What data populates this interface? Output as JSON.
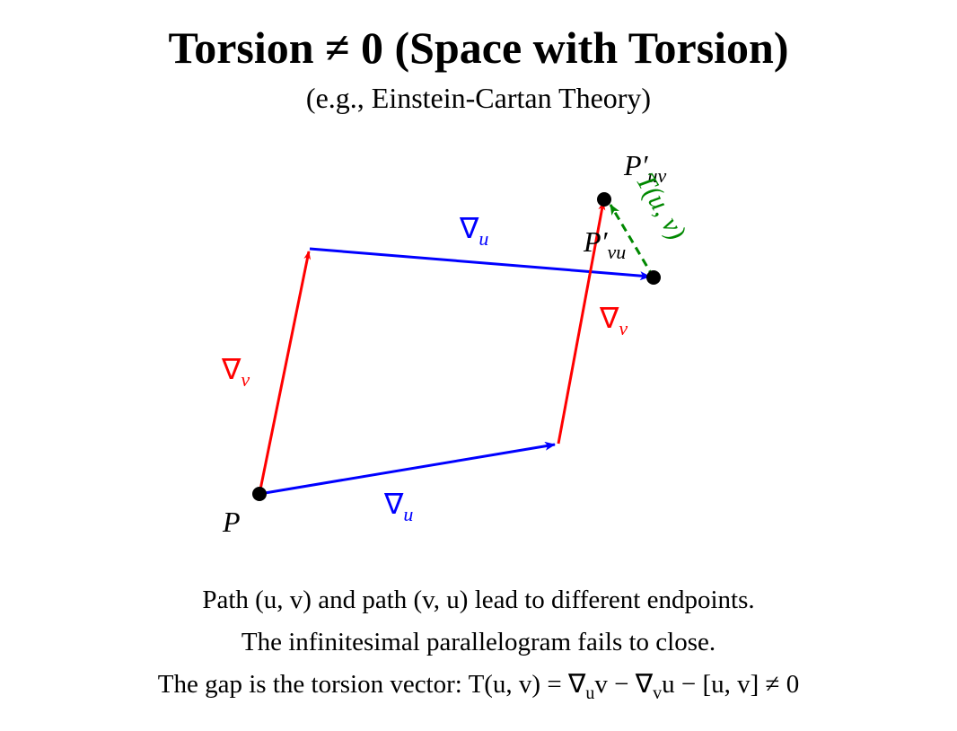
{
  "title": "Torsion ≠ 0 (Space with Torsion)",
  "subtitle": "(e.g., Einstein-Cartan Theory)",
  "points": {
    "p": "P",
    "p_uv": {
      "base": "P′",
      "sub": "uv"
    },
    "p_vu": {
      "base": "P′",
      "sub": "vu"
    }
  },
  "edges": {
    "bottom": {
      "symbol": "∇",
      "sub": "u"
    },
    "left": {
      "symbol": "∇",
      "sub": "v"
    },
    "top": {
      "symbol": "∇",
      "sub": "u"
    },
    "right": {
      "symbol": "∇",
      "sub": "v"
    },
    "gap": "T(u, v)"
  },
  "caption": {
    "line1": "Path (u, v) and path (v, u) lead to different endpoints.",
    "line2": "The infinitesimal parallelogram fails to close.",
    "line3": [
      {
        "text": "The gap is the torsion vector: "
      },
      {
        "text": "T(u, v) = ∇"
      },
      {
        "sub": "u"
      },
      {
        "text": "v − ∇"
      },
      {
        "sub": "v"
      },
      {
        "text": "u − [u, v] ≠ 0"
      }
    ]
  }
}
